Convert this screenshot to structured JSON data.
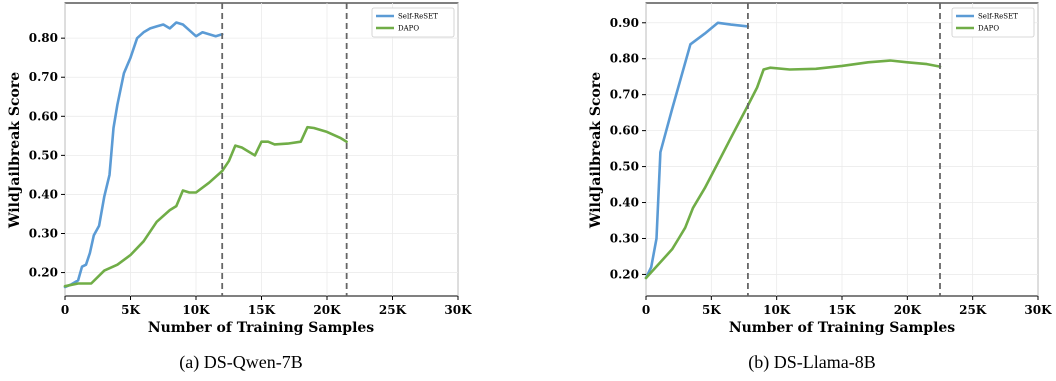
{
  "chart_data": [
    {
      "type": "line",
      "caption": "(a) DS-Qwen-7B",
      "xlabel": "Number of Training Samples",
      "ylabel": "WildJailbreak Score",
      "xlim": [
        0,
        30000
      ],
      "ylim": [
        0.14,
        0.89
      ],
      "xticks": [
        0,
        5000,
        10000,
        15000,
        20000,
        25000,
        30000
      ],
      "xtick_labels": [
        "0",
        "5K",
        "10K",
        "15K",
        "20K",
        "25K",
        "30K"
      ],
      "yticks": [
        0.2,
        0.3,
        0.4,
        0.5,
        0.6,
        0.7,
        0.8
      ],
      "ytick_labels": [
        "0.20",
        "0.30",
        "0.40",
        "0.50",
        "0.60",
        "0.70",
        "0.80"
      ],
      "grid": true,
      "legend": "top-right",
      "vlines": [
        12000,
        21500
      ],
      "series": [
        {
          "name": "Self-ReSET",
          "color": "#5b9bd5",
          "x": [
            0,
            500,
            1000,
            1300,
            1600,
            1900,
            2200,
            2600,
            3000,
            3400,
            3700,
            4000,
            4500,
            5000,
            5500,
            6000,
            6500,
            7000,
            7500,
            8000,
            8500,
            9000,
            9500,
            10000,
            10500,
            11000,
            11500,
            12000
          ],
          "y": [
            0.163,
            0.17,
            0.18,
            0.215,
            0.22,
            0.25,
            0.295,
            0.32,
            0.395,
            0.45,
            0.57,
            0.63,
            0.71,
            0.75,
            0.8,
            0.815,
            0.825,
            0.83,
            0.835,
            0.825,
            0.84,
            0.835,
            0.82,
            0.805,
            0.815,
            0.81,
            0.805,
            0.81
          ]
        },
        {
          "name": "DAPO",
          "color": "#70ad47",
          "x": [
            0,
            1000,
            2000,
            3000,
            4000,
            5000,
            6000,
            7000,
            8000,
            8500,
            9000,
            9500,
            10000,
            11000,
            12000,
            12500,
            13000,
            13500,
            14000,
            14500,
            15000,
            15500,
            16000,
            17000,
            18000,
            18500,
            19000,
            20000,
            21000,
            21500
          ],
          "y": [
            0.165,
            0.172,
            0.172,
            0.205,
            0.22,
            0.245,
            0.28,
            0.33,
            0.36,
            0.37,
            0.41,
            0.405,
            0.405,
            0.43,
            0.46,
            0.485,
            0.525,
            0.52,
            0.51,
            0.5,
            0.535,
            0.535,
            0.528,
            0.53,
            0.535,
            0.572,
            0.57,
            0.56,
            0.545,
            0.535
          ]
        }
      ]
    },
    {
      "type": "line",
      "caption": "(b) DS-Llama-8B",
      "xlabel": "Number of Training Samples",
      "ylabel": "WildJailbreak Score",
      "xlim": [
        0,
        30000
      ],
      "ylim": [
        0.14,
        0.955
      ],
      "xticks": [
        0,
        5000,
        10000,
        15000,
        20000,
        25000,
        30000
      ],
      "xtick_labels": [
        "0",
        "5K",
        "10K",
        "15K",
        "20K",
        "25K",
        "30K"
      ],
      "yticks": [
        0.2,
        0.3,
        0.4,
        0.5,
        0.6,
        0.7,
        0.8,
        0.9
      ],
      "ytick_labels": [
        "0.20",
        "0.30",
        "0.40",
        "0.50",
        "0.60",
        "0.70",
        "0.80",
        "0.90"
      ],
      "grid": true,
      "legend": "top-right",
      "vlines": [
        7800,
        22500
      ],
      "series": [
        {
          "name": "Self-ReSET",
          "color": "#5b9bd5",
          "x": [
            0,
            400,
            800,
            1100,
            1400,
            2000,
            3400,
            4500,
            5500,
            6500,
            7800
          ],
          "y": [
            0.19,
            0.22,
            0.3,
            0.54,
            0.58,
            0.66,
            0.84,
            0.87,
            0.9,
            0.895,
            0.89
          ],
          "style": "solid"
        },
        {
          "name": "DAPO",
          "color": "#70ad47",
          "x": [
            0,
            1000,
            2000,
            2500,
            3000,
            3600,
            4500,
            5500,
            6500,
            7800,
            8500,
            9000,
            9500,
            11000,
            13000,
            15000,
            17000,
            18700,
            20000,
            21500,
            22500
          ],
          "y": [
            0.19,
            0.23,
            0.27,
            0.3,
            0.33,
            0.385,
            0.44,
            0.51,
            0.58,
            0.67,
            0.72,
            0.77,
            0.775,
            0.77,
            0.772,
            0.78,
            0.79,
            0.795,
            0.79,
            0.785,
            0.778
          ]
        }
      ]
    }
  ]
}
